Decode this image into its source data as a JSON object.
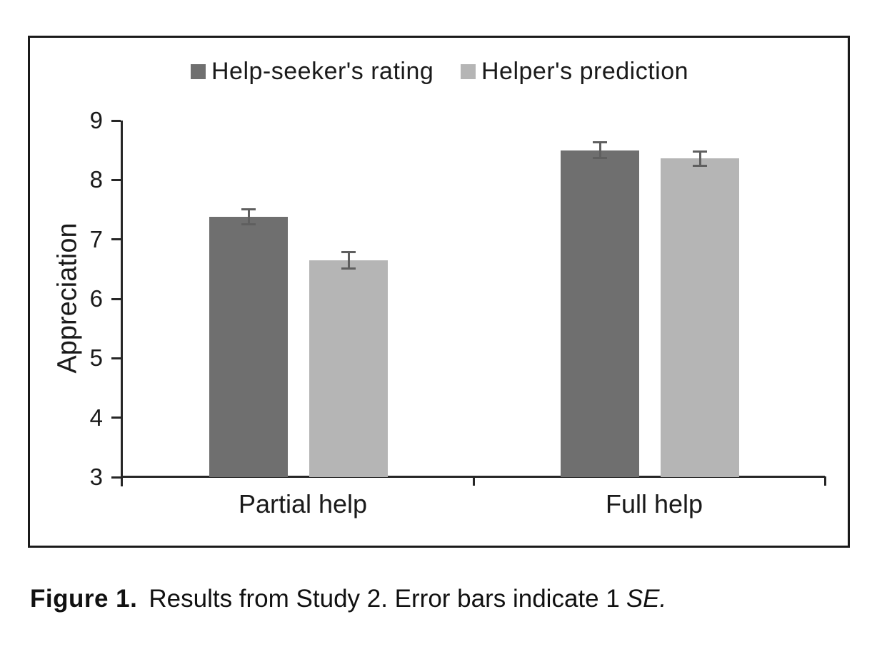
{
  "figure": {
    "caption": {
      "label": "Figure 1.",
      "body": "Results from Study 2. Error bars indicate 1",
      "emphasis": "SE."
    }
  },
  "chart_data": {
    "type": "bar",
    "title": "",
    "xlabel": "",
    "ylabel": "Appreciation",
    "categories": [
      "Partial help",
      "Full help"
    ],
    "series": [
      {
        "name": "Help-seeker's rating",
        "color": "#6f6f6f",
        "values": [
          7.38,
          8.5
        ],
        "errors": [
          0.13,
          0.13
        ]
      },
      {
        "name": "Helper's prediction",
        "color": "#b5b5b5",
        "values": [
          6.65,
          8.36
        ],
        "errors": [
          0.14,
          0.12
        ]
      }
    ],
    "ylim": [
      3,
      9
    ],
    "yticks": [
      3,
      4,
      5,
      6,
      7,
      8,
      9
    ],
    "grid": false,
    "legend_position": "top",
    "error_bar_note": "error bars = 1 SE",
    "axis_color": "#262626",
    "error_color": "#5f5f5f",
    "text_color": "#1a1a1a"
  }
}
